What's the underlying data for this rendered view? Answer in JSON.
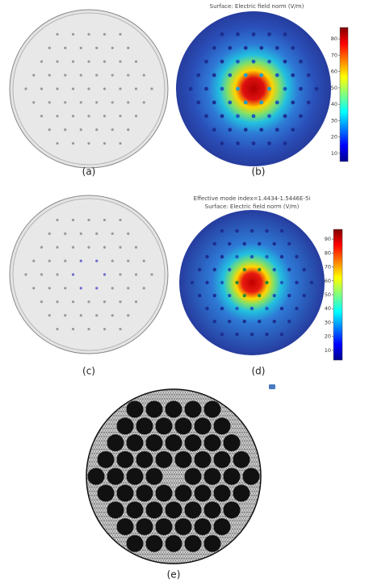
{
  "panels": [
    {
      "label": "(a)"
    },
    {
      "label": "(b)",
      "header": [
        "Surface: Electric field norm (V/m)"
      ],
      "colorbar": {
        "range": [
          5,
          87
        ],
        "ticks": [
          10,
          20,
          30,
          40,
          50,
          60,
          70,
          80
        ]
      }
    },
    {
      "label": "(c)"
    },
    {
      "label": "(d)",
      "header": [
        "Effective mode index=1.4434-1.5446E-5i",
        "Surface: Electric field norm (V/m)"
      ],
      "colorbar": {
        "range": [
          3,
          97
        ],
        "ticks": [
          10,
          20,
          30,
          40,
          50,
          60,
          70,
          80,
          90
        ]
      }
    },
    {
      "label": "(e)"
    }
  ]
}
